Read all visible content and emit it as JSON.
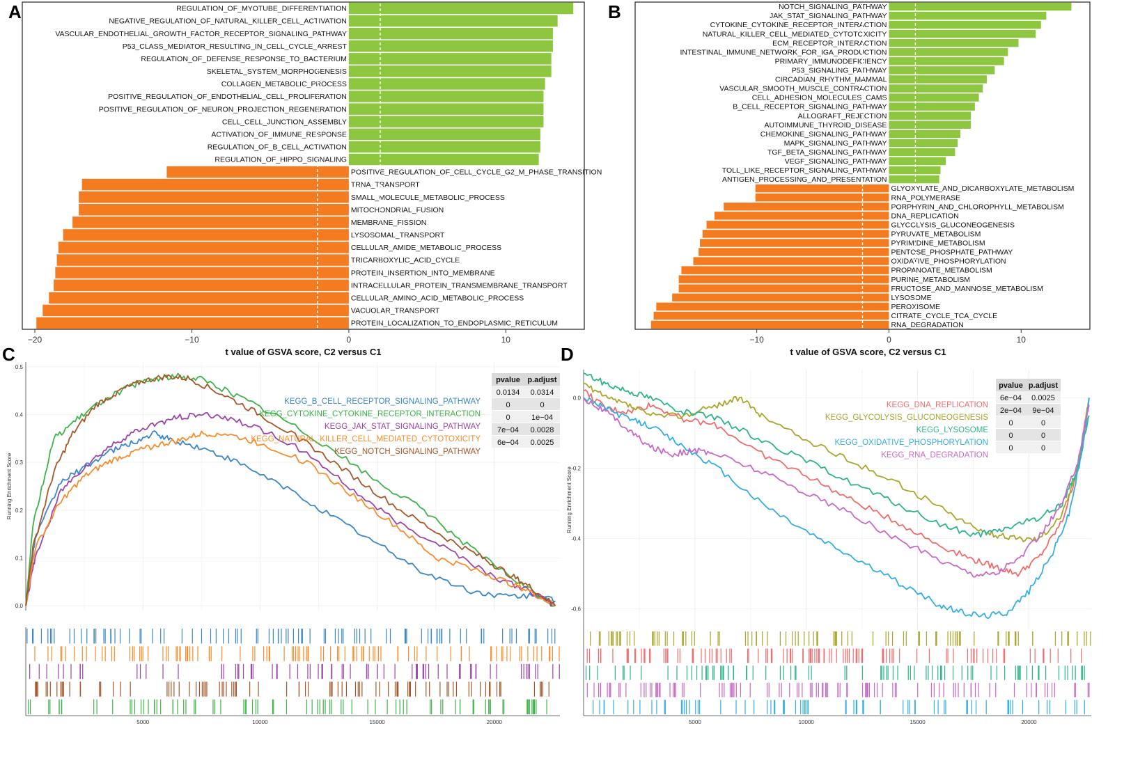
{
  "colors": {
    "positive": "#8dc63f",
    "negative": "#f47b20",
    "frame": "#222222"
  },
  "chart_data": [
    {
      "id": "A",
      "panel_label": "A",
      "type": "bar",
      "orientation": "horizontal",
      "xlabel": "t value of GSVA score, C2 versus C1",
      "xlim": [
        -20.8,
        15
      ],
      "xticks": [
        -20,
        -10,
        0,
        10
      ],
      "xtick_labels": [
        "−20",
        "−10",
        "0",
        "10"
      ],
      "threshold_lines": [
        -2,
        2
      ],
      "categories": [
        "REGULATION_OF_MYOTUBE_DIFFERENTIATION",
        "NEGATIVE_REGULATION_OF_NATURAL_KILLER_CELL_ACTIVATION",
        "VASCULAR_ENDOTHELIAL_GROWTH_FACTOR_RECEPTOR_SIGNALING_PATHWAY",
        "P53_CLASS_MEDIATOR_RESULTING_IN_CELL_CYCLE_ARREST",
        "REGULATION_OF_DEFENSE_RESPONSE_TO_BACTERIUM",
        "SKELETAL_SYSTEM_MORPHOGENESIS",
        "COLLAGEN_METABOLIC_PROCESS",
        "POSITIVE_REGULATION_OF_ENDOTHELIAL_CELL_PROLIFERATION",
        "POSITIVE_REGULATION_OF_NEURON_PROJECTION_REGENERATION",
        "CELL_CELL_JUNCTION_ASSEMBLY",
        "ACTIVATION_OF_IMMUNE_RESPONSE",
        "REGULATION_OF_B_CELL_ACTIVATION",
        "REGULATION_OF_HIPPO_SIGNALING",
        "POSITIVE_REGULATION_OF_CELL_CYCLE_G2_M_PHASE_TRANSITION",
        "TRNA_TRANSPORT",
        "SMALL_MOLECULE_METABOLIC_PROCESS",
        "MITOCHONDRIAL_FUSION",
        "MEMBRANE_FISSION",
        "LYSOSOMAL_TRANSPORT",
        "CELLULAR_AMIDE_METABOLIC_PROCESS",
        "TRICARBOXYLIC_ACID_CYCLE",
        "PROTEIN_INSERTION_INTO_MEMBRANE",
        "INTRACELLULAR_PROTEIN_TRANSMEMBRANE_TRANSPORT",
        "CELLULAR_AMINO_ACID_METABOLIC_PROCESS",
        "VACUOLAR_TRANSPORT",
        "PROTEIN_LOCALIZATION_TO_ENDOPLASMIC_RETICULUM"
      ],
      "values": [
        14.3,
        13.3,
        13.0,
        13.0,
        12.9,
        12.9,
        12.5,
        12.4,
        12.4,
        12.4,
        12.2,
        12.2,
        12.1,
        -11.6,
        -17.0,
        -17.2,
        -17.2,
        -17.6,
        -18.2,
        -18.5,
        -18.6,
        -18.7,
        -18.8,
        -19.1,
        -19.5,
        -19.9
      ]
    },
    {
      "id": "B",
      "panel_label": "B",
      "type": "bar",
      "orientation": "horizontal",
      "xlabel": "t value of GSVA score, C2 versus C1",
      "xlim": [
        -19.2,
        15.2
      ],
      "xticks": [
        -10,
        0,
        10
      ],
      "xtick_labels": [
        "−10",
        "0",
        "10"
      ],
      "threshold_lines": [
        -2,
        2
      ],
      "categories": [
        "NOTCH_SIGNALING_PATHWAY",
        "JAK_STAT_SIGNALING_PATHWAY",
        "CYTOKINE_CYTOKINE_RECEPTOR_INTERACTION",
        "NATURAL_KILLER_CELL_MEDIATED_CYTOTOXICITY",
        "ECM_RECEPTOR_INTERACTION",
        "INTESTINAL_IMMUNE_NETWORK_FOR_IGA_PRODUCTION",
        "PRIMARY_IMMUNODEFICIENCY",
        "P53_SIGNALING_PATHWAY",
        "CIRCADIAN_RHYTHM_MAMMAL",
        "VASCULAR_SMOOTH_MUSCLE_CONTRACTION",
        "CELL_ADHESION_MOLECULES_CAMS",
        "B_CELL_RECEPTOR_SIGNALING_PATHWAY",
        "ALLOGRAFT_REJECTION",
        "AUTOIMMUNE_THYROID_DISEASE",
        "CHEMOKINE_SIGNALING_PATHWAY",
        "MAPK_SIGNALING_PATHWAY",
        "TGF_BETA_SIGNALING_PATHWAY",
        "VEGF_SIGNALING_PATHWAY",
        "TOLL_LIKE_RECEPTOR_SIGNALING_PATHWAY",
        "ANTIGEN_PROCESSING_AND_PRESENTATION",
        "GLYOXYLATE_AND_DICARBOXYLATE_METABOLISM",
        "RNA_POLYMERASE",
        "PORPHYRIN_AND_CHLOROPHYLL_METABOLISM",
        "DNA_REPLICATION",
        "GLYCOLYSIS_GLUCONEOGENESIS",
        "PYRUVATE_METABOLISM",
        "PYRIMIDINE_METABOLISM",
        "PENTOSE_PHOSPHATE_PATHWAY",
        "OXIDATIVE_PHOSPHORYLATION",
        "PROPANOATE_METABOLISM",
        "PURINE_METABOLISM",
        "FRUCTOSE_AND_MANNOSE_METABOLISM",
        "LYSOSOME",
        "PEROXISOME",
        "CITRATE_CYCLE_TCA_CYCLE",
        "RNA_DEGRADATION"
      ],
      "values": [
        13.8,
        11.9,
        11.5,
        11.1,
        9.8,
        9.0,
        8.7,
        8.0,
        7.4,
        7.1,
        6.8,
        6.5,
        6.2,
        6.2,
        5.4,
        5.2,
        5.0,
        4.3,
        3.9,
        3.8,
        -10.1,
        -10.1,
        -12.5,
        -13.2,
        -13.8,
        -14.1,
        -14.3,
        -14.4,
        -14.8,
        -15.7,
        -15.9,
        -15.9,
        -16.4,
        -17.6,
        -17.8,
        -18.0
      ]
    },
    {
      "id": "C",
      "panel_label": "C",
      "type": "line",
      "ylabel": "Running Enrichment Score",
      "xlim": [
        0,
        22800
      ],
      "ylim": [
        -0.01,
        0.51
      ],
      "xticks": [
        5000,
        10000,
        15000,
        20000
      ],
      "yticks": [
        0.0,
        0.1,
        0.2,
        0.3,
        0.4,
        0.5
      ],
      "ytick_labels": [
        "0.0",
        "0.1",
        "0.2",
        "0.3",
        "0.4",
        "0.5"
      ],
      "series": [
        {
          "name": "KEGG_B_CELL_RECEPTOR_SIGNALING_PATHWAY",
          "color": "#3a86c8",
          "x": [
            0,
            400,
            1500,
            2500,
            3500,
            4500,
            5500,
            6300,
            7500,
            9000,
            11000,
            13000,
            15000,
            17000,
            19000,
            20500,
            22000,
            22600
          ],
          "y": [
            0.0,
            0.14,
            0.26,
            0.29,
            0.32,
            0.34,
            0.36,
            0.345,
            0.33,
            0.3,
            0.25,
            0.19,
            0.13,
            0.07,
            0.03,
            0.02,
            0.02,
            0.01
          ]
        },
        {
          "name": "KEGG_CYTOKINE_CYTOKINE_RECEPTOR_INTERACTION",
          "color": "#3fb24a",
          "x": [
            0,
            300,
            1200,
            2200,
            3300,
            4500,
            5500,
            6500,
            7500,
            9000,
            11000,
            13000,
            15000,
            17000,
            19000,
            21000,
            22600
          ],
          "y": [
            0.0,
            0.17,
            0.35,
            0.39,
            0.43,
            0.46,
            0.475,
            0.48,
            0.475,
            0.44,
            0.39,
            0.33,
            0.26,
            0.2,
            0.12,
            0.05,
            0.0
          ]
        },
        {
          "name": "KEGG_JAK_STAT_SIGNALING_PATHWAY",
          "color": "#9b45a8",
          "x": [
            0,
            400,
            1500,
            2500,
            3500,
            4500,
            5500,
            6500,
            7500,
            8500,
            10000,
            12000,
            14000,
            16000,
            18000,
            20000,
            21500,
            22600
          ],
          "y": [
            0.0,
            0.1,
            0.24,
            0.29,
            0.33,
            0.36,
            0.38,
            0.395,
            0.4,
            0.395,
            0.37,
            0.32,
            0.24,
            0.17,
            0.12,
            0.06,
            0.03,
            0.0
          ]
        },
        {
          "name": "KEGG_NATURAL_KILLER_CELL_MEDIATED_CYTOTOXICITY",
          "color": "#f98c2a",
          "x": [
            0,
            400,
            1500,
            2500,
            3500,
            4500,
            5500,
            6500,
            7500,
            8500,
            10000,
            12000,
            14000,
            16000,
            17500,
            19000,
            20500,
            21500,
            22600
          ],
          "y": [
            0.0,
            0.12,
            0.22,
            0.27,
            0.3,
            0.32,
            0.335,
            0.345,
            0.36,
            0.36,
            0.34,
            0.3,
            0.23,
            0.16,
            0.1,
            0.08,
            0.05,
            0.03,
            0.0
          ]
        },
        {
          "name": "KEGG_NOTCH_SIGNALING_PATHWAY",
          "color": "#a65628",
          "x": [
            0,
            300,
            1200,
            2000,
            3000,
            4000,
            5000,
            6000,
            7000,
            8500,
            10000,
            12000,
            14000,
            16000,
            18000,
            19500,
            20500,
            21500,
            22600
          ],
          "y": [
            0.0,
            0.12,
            0.28,
            0.36,
            0.42,
            0.45,
            0.47,
            0.48,
            0.475,
            0.44,
            0.4,
            0.34,
            0.27,
            0.2,
            0.14,
            0.1,
            0.07,
            0.04,
            0.0
          ]
        }
      ],
      "table": {
        "headers": [
          "pvalue",
          "p.adjust"
        ],
        "rows": [
          [
            "0.0134",
            "0.0314"
          ],
          [
            "0",
            "0"
          ],
          [
            "0",
            "1e−04"
          ],
          [
            "7e−04",
            "0.0028"
          ],
          [
            "6e−04",
            "0.0025"
          ]
        ]
      }
    },
    {
      "id": "D",
      "panel_label": "D",
      "type": "line",
      "ylabel": "Running Enrichment Score",
      "xlim": [
        0,
        22800
      ],
      "ylim": [
        -0.66,
        0.08
      ],
      "xticks": [
        5000,
        10000,
        15000,
        20000
      ],
      "yticks": [
        0.0,
        -0.2,
        -0.4,
        -0.6
      ],
      "ytick_labels": [
        "0.0",
        "-0.2",
        "-0.4",
        "-0.6"
      ],
      "series": [
        {
          "name": "KEGG_DNA_REPLICATION",
          "color": "#f26b6b",
          "x": [
            0,
            1000,
            2000,
            3000,
            4500,
            6000,
            8000,
            10000,
            12000,
            14000,
            16000,
            17500,
            18500,
            19500,
            20500,
            21500,
            22200,
            22700
          ],
          "y": [
            0.02,
            -0.03,
            -0.04,
            -0.02,
            -0.06,
            -0.08,
            -0.16,
            -0.22,
            -0.29,
            -0.35,
            -0.42,
            -0.46,
            -0.48,
            -0.5,
            -0.45,
            -0.35,
            -0.2,
            0.0
          ]
        },
        {
          "name": "KEGG_GLYCOLYSIS_GLUCONEOGENESIS",
          "color": "#a8a62b",
          "x": [
            0,
            1000,
            2000,
            3000,
            4500,
            6000,
            7000,
            8000,
            10000,
            12000,
            14000,
            16000,
            17500,
            18500,
            19500,
            20500,
            21500,
            22200,
            22700
          ],
          "y": [
            0.04,
            0.0,
            -0.02,
            -0.05,
            -0.05,
            -0.02,
            0.0,
            -0.05,
            -0.12,
            -0.18,
            -0.24,
            -0.31,
            -0.37,
            -0.39,
            -0.4,
            -0.4,
            -0.33,
            -0.2,
            0.0
          ]
        },
        {
          "name": "KEGG_LYSOSOME",
          "color": "#2cb48a",
          "x": [
            0,
            1000,
            2000,
            3000,
            4500,
            6000,
            8000,
            10000,
            12000,
            14000,
            16000,
            17500,
            18500,
            19500,
            20500,
            21500,
            22200,
            22700
          ],
          "y": [
            0.07,
            0.04,
            0.02,
            0.0,
            -0.04,
            -0.06,
            -0.12,
            -0.18,
            -0.24,
            -0.3,
            -0.36,
            -0.39,
            -0.38,
            -0.36,
            -0.34,
            -0.3,
            -0.2,
            -0.05
          ]
        },
        {
          "name": "KEGG_OXIDATIVE_PHOSPHORYLATION",
          "color": "#33aee4",
          "x": [
            0,
            1000,
            2000,
            3000,
            4500,
            6000,
            8000,
            10000,
            12000,
            14000,
            16000,
            17000,
            18000,
            19000,
            20000,
            21000,
            21800,
            22400,
            22700
          ],
          "y": [
            0.0,
            -0.03,
            -0.06,
            -0.08,
            -0.14,
            -0.2,
            -0.3,
            -0.38,
            -0.45,
            -0.52,
            -0.59,
            -0.61,
            -0.62,
            -0.61,
            -0.55,
            -0.45,
            -0.33,
            -0.15,
            0.0
          ]
        },
        {
          "name": "KEGG_RNA_DEGRADATION",
          "color": "#c869c6",
          "x": [
            0,
            1000,
            2000,
            3000,
            4000,
            5000,
            6000,
            8000,
            10000,
            12000,
            14000,
            16000,
            17500,
            18500,
            19500,
            20500,
            21500,
            22200,
            22700
          ],
          "y": [
            0.0,
            -0.04,
            -0.09,
            -0.14,
            -0.16,
            -0.15,
            -0.16,
            -0.21,
            -0.27,
            -0.33,
            -0.4,
            -0.46,
            -0.5,
            -0.5,
            -0.46,
            -0.39,
            -0.3,
            -0.18,
            -0.02
          ]
        }
      ],
      "table": {
        "headers": [
          "pvalue",
          "p.adjust"
        ],
        "rows": [
          [
            "6e−04",
            "0.0025"
          ],
          [
            "2e−04",
            "9e−04"
          ],
          [
            "0",
            "0"
          ],
          [
            "0",
            "0"
          ],
          [
            "0",
            "0"
          ]
        ]
      }
    }
  ]
}
